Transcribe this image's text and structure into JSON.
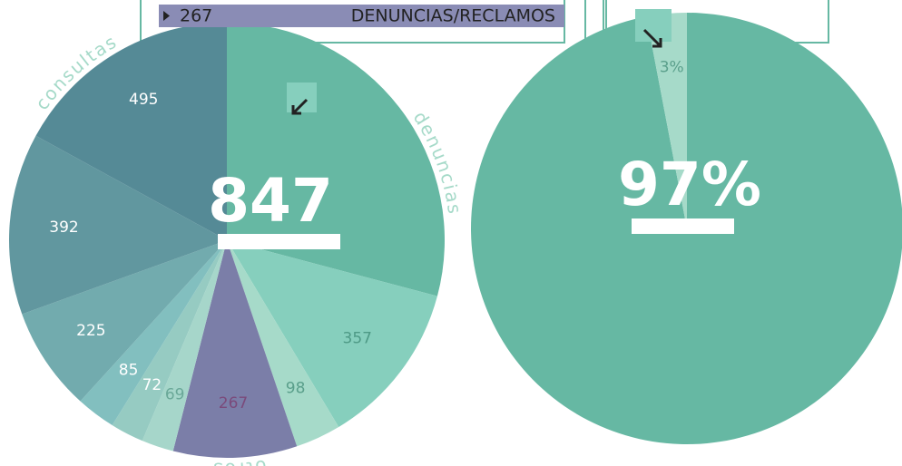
{
  "chart_data": [
    {
      "type": "pie",
      "values": [
        847,
        357,
        98,
        267,
        69,
        72,
        85,
        225,
        392,
        495
      ],
      "colors": [
        "#66b8a3",
        "#86cfbd",
        "#a6dac9",
        "#7b7ea8",
        "#a6d6ca",
        "#96cbc2",
        "#82bfbf",
        "#72abae",
        "#61979f",
        "#558a96"
      ],
      "label_colors": [
        "#ffffff",
        "#4e9a86",
        "#5a9f8b",
        "#7b4a7b",
        "#6aa898",
        "#ffffff",
        "#ffffff",
        "#ffffff",
        "#ffffff",
        "#ffffff"
      ],
      "group_labels": [
        "consultas",
        "denuncias",
        "otros"
      ],
      "annotation": {
        "value": 267,
        "text": "DENUNCIAS/RECLAMOS"
      }
    },
    {
      "type": "pie",
      "values": [
        97,
        3
      ],
      "value_labels": [
        "97%",
        "3%"
      ],
      "colors": [
        "#66b8a3",
        "#a6dac9"
      ],
      "label_colors": [
        "#ffffff",
        "#5a9f8b"
      ]
    }
  ]
}
